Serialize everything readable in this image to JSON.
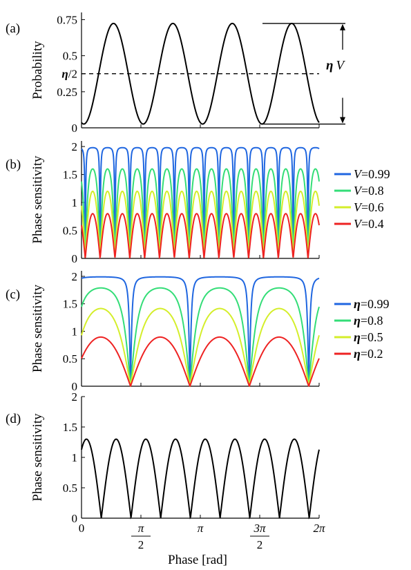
{
  "chart_data": [
    {
      "panel": "(a)",
      "type": "line",
      "ylabel": "Probability",
      "xlim": [
        0,
        6.2832
      ],
      "ylim": [
        0,
        0.8
      ],
      "yticks": [
        {
          "value": 0,
          "label": "0"
        },
        {
          "value": 0.25,
          "label": "0.25"
        },
        {
          "value": 0.375,
          "label": "η/2"
        },
        {
          "value": 0.5,
          "label": "0.5"
        },
        {
          "value": 0.75,
          "label": "0.75"
        }
      ],
      "series": [
        {
          "color": "#000000",
          "model": "probability",
          "eta": 0.75,
          "V": 0.93,
          "frequency": 4
        }
      ],
      "reference_line": {
        "y": 0.375,
        "style": "dashed"
      },
      "annotation": {
        "label": "η V"
      }
    },
    {
      "panel": "(b)",
      "type": "line",
      "ylabel": "Phase sensitivity",
      "xlim": [
        0,
        6.2832
      ],
      "ylim": [
        0,
        2.1
      ],
      "yticks": [
        {
          "value": 0,
          "label": "0"
        },
        {
          "value": 0.5,
          "label": "0.5"
        },
        {
          "value": 1,
          "label": "1"
        },
        {
          "value": 1.5,
          "label": "1.5"
        },
        {
          "value": 2,
          "label": "2"
        }
      ],
      "series": [
        {
          "name": "V=0.99",
          "var": "V",
          "val": "=0.99",
          "color": "#1f66e0",
          "model": "visibility",
          "V": 0.99,
          "frequency": 8
        },
        {
          "name": "V=0.8",
          "var": "V",
          "val": "=0.8",
          "color": "#33dd77",
          "model": "visibility",
          "V": 0.8,
          "frequency": 8
        },
        {
          "name": "V=0.6",
          "var": "V",
          "val": "=0.6",
          "color": "#d4ee2a",
          "model": "visibility",
          "V": 0.6,
          "frequency": 8
        },
        {
          "name": "V=0.4",
          "var": "V",
          "val": "=0.4",
          "color": "#ee2222",
          "model": "visibility",
          "V": 0.4,
          "frequency": 8
        }
      ],
      "legend": "right"
    },
    {
      "panel": "(c)",
      "type": "line",
      "ylabel": "Phase sensitivity",
      "xlim": [
        0,
        6.2832
      ],
      "ylim": [
        0,
        2.1
      ],
      "yticks": [
        {
          "value": 0,
          "label": "0"
        },
        {
          "value": 0.5,
          "label": "0.5"
        },
        {
          "value": 1,
          "label": "1"
        },
        {
          "value": 1.5,
          "label": "1.5"
        },
        {
          "value": 2,
          "label": "2"
        }
      ],
      "series": [
        {
          "name": "η=0.99",
          "var": "η",
          "val": "=0.99",
          "color": "#1f66e0",
          "model": "efficiency",
          "eta": 0.99,
          "frequency": 4
        },
        {
          "name": "η=0.8",
          "var": "η",
          "val": "=0.8",
          "color": "#33dd77",
          "model": "efficiency",
          "eta": 0.8,
          "frequency": 4
        },
        {
          "name": "η=0.5",
          "var": "η",
          "val": "=0.5",
          "color": "#d4ee2a",
          "model": "efficiency",
          "eta": 0.5,
          "frequency": 4
        },
        {
          "name": "η=0.2",
          "var": "η",
          "val": "=0.2",
          "color": "#ee2222",
          "model": "efficiency",
          "eta": 0.2,
          "frequency": 4
        }
      ],
      "legend": "right"
    },
    {
      "panel": "(d)",
      "type": "line",
      "ylabel": "Phase sensitivity",
      "xlabel": "Phase [rad]",
      "xlim": [
        0,
        6.2832
      ],
      "ylim": [
        0,
        2
      ],
      "yticks": [
        {
          "value": 0,
          "label": "0"
        },
        {
          "value": 0.5,
          "label": "0.5"
        },
        {
          "value": 1,
          "label": "1"
        },
        {
          "value": 1.5,
          "label": "1.5"
        },
        {
          "value": 2,
          "label": "2"
        }
      ],
      "xticks": [
        {
          "value": 0,
          "num": "0",
          "den": ""
        },
        {
          "value": 1.5708,
          "num": "π",
          "den": "2"
        },
        {
          "value": 3.1416,
          "num": "π",
          "den": ""
        },
        {
          "value": 4.7124,
          "num": "3π",
          "den": "2"
        },
        {
          "value": 6.2832,
          "num": "2π",
          "den": ""
        }
      ],
      "series": [
        {
          "color": "#000000",
          "model": "abs_sin",
          "amplitude": 1.3,
          "frequency": 4
        }
      ]
    }
  ]
}
